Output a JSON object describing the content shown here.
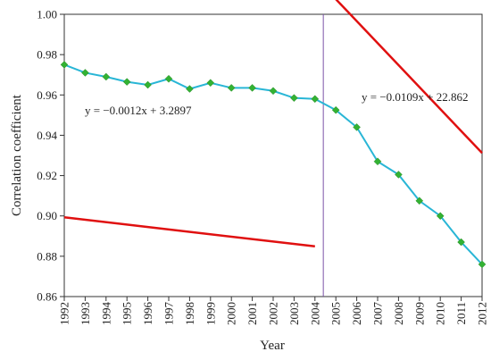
{
  "chart_data": {
    "type": "line",
    "xlabel": "Year",
    "ylabel": "Correlation coefficient",
    "x": [
      1992,
      1993,
      1994,
      1995,
      1996,
      1997,
      1998,
      1999,
      2000,
      2001,
      2002,
      2003,
      2004,
      2005,
      2006,
      2007,
      2008,
      2009,
      2010,
      2011,
      2012
    ],
    "xlim": [
      1992,
      2012
    ],
    "ylim": [
      0.86,
      1.0
    ],
    "yticks": [
      "0.86",
      "0.88",
      "0.90",
      "0.92",
      "0.94",
      "0.96",
      "0.98",
      "1.00"
    ],
    "grid": false,
    "series": [
      {
        "values": [
          0.975,
          0.971,
          0.969,
          0.9665,
          0.965,
          0.968,
          0.963,
          0.966,
          0.9635,
          0.9635,
          0.962,
          0.9585,
          0.958,
          0.9525,
          0.944,
          0.927,
          0.9205,
          0.9075,
          0.9,
          0.887,
          0.876
        ],
        "line_color": "#29b6d6",
        "marker_color": "#33b233"
      }
    ],
    "trendlines": [
      {
        "equation": "y = −0.0012x + 3.2897",
        "x_range": [
          1992,
          2004
        ],
        "slope": -0.0012,
        "intercept": 3.2897,
        "color": "#e01010"
      },
      {
        "equation": "y = −0.0109x + 22.862",
        "x_range": [
          2004,
          2012
        ],
        "slope": -0.0109,
        "intercept": 22.862,
        "color": "#e01010"
      }
    ],
    "divider_x": 2004.4,
    "divider_color": "#7a52a8"
  }
}
